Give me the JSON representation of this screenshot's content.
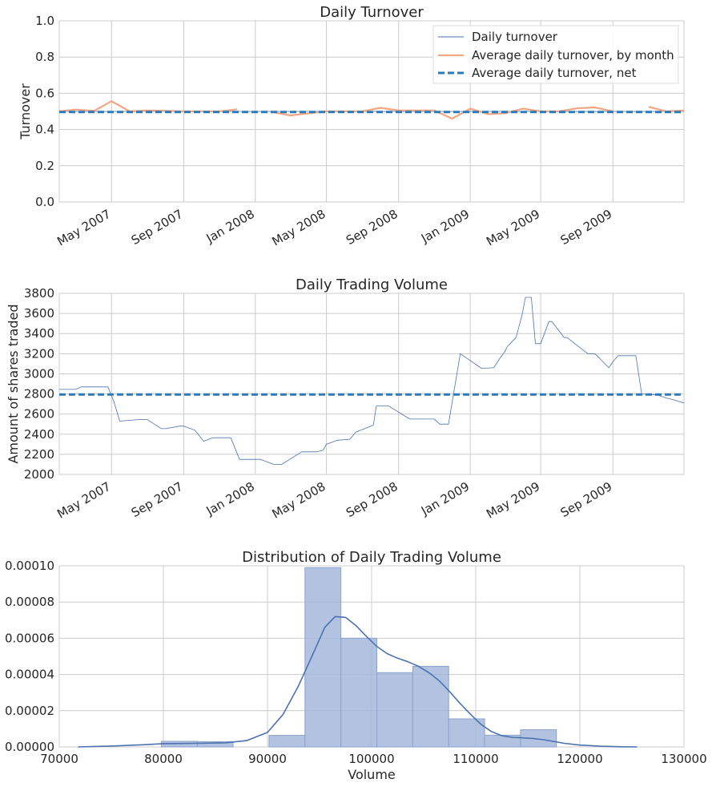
{
  "palette": {
    "daily_line": "#4c72b0",
    "monthly_line": "#f4a582",
    "net_line": "#2b7bba",
    "kde_line": "#4c72b0",
    "hist_fill": "#9fb3d9",
    "hist_edge": "#8ea3cc"
  },
  "chart_data": [
    {
      "type": "line",
      "title": "Daily Turnover",
      "xlabel": "",
      "ylabel": "Turnover",
      "ylim": [
        0,
        1.0
      ],
      "yticks": [
        0.0,
        0.2,
        0.4,
        0.6,
        0.8,
        1.0
      ],
      "ytick_labels": [
        "0.0",
        "0.2",
        "0.4",
        "0.6",
        "0.8",
        "1.0"
      ],
      "xlim": [
        "2007-02-01",
        "2009-12-31"
      ],
      "xticks": [
        "2007-05-01",
        "2007-09-01",
        "2008-01-01",
        "2008-05-01",
        "2008-09-01",
        "2009-01-01",
        "2009-05-01",
        "2009-09-01"
      ],
      "xtick_labels": [
        "May 2007",
        "Sep 2007",
        "Jan 2008",
        "May 2008",
        "Sep 2008",
        "Jan 2009",
        "May 2009",
        "Sep 2009"
      ],
      "grid": true,
      "legend": "upper-right",
      "series": [
        {
          "name": "Daily turnover",
          "style": "thin",
          "x": [
            "2007-02-01",
            "2009-12-31"
          ],
          "y": [
            0.5,
            0.5
          ]
        },
        {
          "name": "Average daily turnover, by month",
          "style": "solid",
          "segments": [
            {
              "x": [
                "2007-02-01",
                "2007-03-01",
                "2007-04-01",
                "2007-05-01",
                "2007-06-01",
                "2007-07-01",
                "2007-08-01",
                "2007-09-01",
                "2007-10-01",
                "2007-11-01",
                "2007-12-01"
              ],
              "y": [
                0.5,
                0.51,
                0.502,
                0.556,
                0.5,
                0.505,
                0.503,
                0.5,
                0.5,
                0.5,
                0.512
              ]
            },
            {
              "x": [
                "2008-02-01",
                "2008-03-01",
                "2008-04-01",
                "2008-05-01",
                "2008-06-01",
                "2008-07-01",
                "2008-08-01",
                "2008-09-01",
                "2008-10-01",
                "2008-11-01",
                "2008-12-01",
                "2009-01-01",
                "2009-02-01",
                "2009-03-01",
                "2009-04-01",
                "2009-05-01",
                "2009-06-01",
                "2009-07-01",
                "2009-08-01",
                "2009-09-01"
              ],
              "y": [
                0.495,
                0.478,
                0.49,
                0.5,
                0.5,
                0.5,
                0.52,
                0.505,
                0.505,
                0.505,
                0.46,
                0.515,
                0.485,
                0.49,
                0.515,
                0.5,
                0.5,
                0.517,
                0.522,
                0.5
              ]
            },
            {
              "x": [
                "2009-11-01",
                "2009-12-01",
                "2009-12-31"
              ],
              "y": [
                0.525,
                0.5,
                0.505
              ]
            }
          ]
        },
        {
          "name": "Average daily turnover, net",
          "style": "dashed",
          "x": [
            "2007-02-01",
            "2009-12-31"
          ],
          "y": [
            0.497,
            0.497
          ]
        }
      ]
    },
    {
      "type": "line",
      "title": "Daily Trading Volume",
      "xlabel": "",
      "ylabel": "Amount of shares traded",
      "ylim": [
        2000,
        3800
      ],
      "yticks": [
        2000,
        2200,
        2400,
        2600,
        2800,
        3000,
        3200,
        3400,
        3600,
        3800
      ],
      "ytick_labels": [
        "2000",
        "2200",
        "2400",
        "2600",
        "2800",
        "3000",
        "3200",
        "3400",
        "3600",
        "3800"
      ],
      "xlim": [
        "2007-02-01",
        "2009-12-31"
      ],
      "xticks": [
        "2007-05-01",
        "2007-09-01",
        "2008-01-01",
        "2008-05-01",
        "2008-09-01",
        "2009-01-01",
        "2009-05-01",
        "2009-09-01"
      ],
      "xtick_labels": [
        "May 2007",
        "Sep 2007",
        "Jan 2008",
        "May 2008",
        "Sep 2008",
        "Jan 2009",
        "May 2009",
        "Sep 2009"
      ],
      "grid": true,
      "series": [
        {
          "name": "",
          "style": "thin",
          "x": [
            "2007-02-01",
            "2007-03-01",
            "2007-03-10",
            "2007-04-25",
            "2007-05-05",
            "2007-05-15",
            "2007-06-15",
            "2007-07-01",
            "2007-07-25",
            "2007-08-01",
            "2007-08-25",
            "2007-09-01",
            "2007-09-20",
            "2007-10-05",
            "2007-10-20",
            "2007-11-01",
            "2007-11-20",
            "2007-12-05",
            "2007-12-25",
            "2008-01-10",
            "2008-02-01",
            "2008-02-15",
            "2008-03-20",
            "2008-04-15",
            "2008-04-25",
            "2008-05-01",
            "2008-05-20",
            "2008-06-10",
            "2008-06-20",
            "2008-07-20",
            "2008-07-25",
            "2008-08-15",
            "2008-09-20",
            "2008-10-05",
            "2008-11-01",
            "2008-11-10",
            "2008-11-25",
            "2008-12-15",
            "2009-01-20",
            "2009-02-10",
            "2009-02-20",
            "2009-03-01",
            "2009-03-05",
            "2009-03-20",
            "2009-03-30",
            "2009-04-05",
            "2009-04-15",
            "2009-04-22",
            "2009-05-01",
            "2009-05-15",
            "2009-05-20",
            "2009-06-10",
            "2009-06-15",
            "2009-07-20",
            "2009-08-01",
            "2009-08-10",
            "2009-08-25",
            "2009-09-01",
            "2009-09-10",
            "2009-10-10",
            "2009-10-20",
            "2009-11-15",
            "2009-12-01",
            "2009-12-15",
            "2009-12-31"
          ],
          "y": [
            2845,
            2845,
            2870,
            2870,
            2725,
            2530,
            2545,
            2545,
            2455,
            2455,
            2480,
            2480,
            2440,
            2330,
            2365,
            2365,
            2365,
            2150,
            2150,
            2150,
            2100,
            2100,
            2225,
            2225,
            2240,
            2300,
            2340,
            2350,
            2420,
            2490,
            2680,
            2680,
            2550,
            2550,
            2550,
            2500,
            2500,
            3200,
            3055,
            3060,
            3150,
            3220,
            3270,
            3360,
            3580,
            3760,
            3760,
            3300,
            3300,
            3520,
            3520,
            3360,
            3360,
            3200,
            3200,
            3150,
            3060,
            3120,
            3180,
            3180,
            2800,
            2790,
            2760,
            2740,
            2710
          ]
        },
        {
          "name": "",
          "style": "dashed",
          "x": [
            "2007-02-01",
            "2009-12-31"
          ],
          "y": [
            2795,
            2795
          ]
        }
      ]
    },
    {
      "type": "histogram",
      "title": "Distribution of Daily Trading Volume",
      "xlabel": "Volume",
      "ylabel": "",
      "xlim": [
        70000,
        130000
      ],
      "ylim": [
        0,
        0.0001
      ],
      "xticks": [
        70000,
        80000,
        90000,
        100000,
        110000,
        120000,
        130000
      ],
      "xtick_labels": [
        "70000",
        "80000",
        "90000",
        "100000",
        "110000",
        "120000",
        "130000"
      ],
      "yticks": [
        0,
        2e-05,
        4e-05,
        6e-05,
        8e-05,
        0.0001
      ],
      "ytick_labels": [
        "0.00000",
        "0.00002",
        "0.00004",
        "0.00006",
        "0.00008",
        "0.00010"
      ],
      "grid": true,
      "bins": [
        {
          "x0": 79800,
          "x1": 83250,
          "density": 3.1e-06
        },
        {
          "x0": 83250,
          "x1": 86700,
          "density": 2.9e-06
        },
        {
          "x0": 86700,
          "x1": 90150,
          "density": 0.0
        },
        {
          "x0": 90150,
          "x1": 93600,
          "density": 6.4e-06
        },
        {
          "x0": 93600,
          "x1": 97050,
          "density": 9.9e-05
        },
        {
          "x0": 97050,
          "x1": 100500,
          "density": 6e-05
        },
        {
          "x0": 100500,
          "x1": 103950,
          "density": 4.1e-05
        },
        {
          "x0": 103950,
          "x1": 107400,
          "density": 4.45e-05
        },
        {
          "x0": 107400,
          "x1": 110850,
          "density": 1.55e-05
        },
        {
          "x0": 110850,
          "x1": 114300,
          "density": 6.5e-06
        },
        {
          "x0": 114300,
          "x1": 117750,
          "density": 9.5e-06
        }
      ],
      "kde": {
        "x": [
          71800,
          75000,
          78000,
          80000,
          83000,
          86000,
          88000,
          90000,
          91500,
          93000,
          94500,
          95500,
          96500,
          97500,
          98500,
          99500,
          100500,
          101500,
          102500,
          103500,
          104500,
          105500,
          106500,
          107500,
          108500,
          109500,
          110500,
          111500,
          112500,
          113500,
          114500,
          115500,
          116500,
          117500,
          118500,
          120000,
          122000,
          124000,
          125500
        ],
        "y": [
          0.0,
          5e-07,
          1.2e-06,
          1.8e-06,
          2e-06,
          2.3e-06,
          3.5e-06,
          8e-06,
          1.8e-05,
          3.4e-05,
          5.3e-05,
          6.6e-05,
          7.2e-05,
          7.15e-05,
          6.7e-05,
          6.1e-05,
          5.55e-05,
          5.15e-05,
          4.9e-05,
          4.7e-05,
          4.45e-05,
          4.1e-05,
          3.65e-05,
          3.05e-05,
          2.4e-05,
          1.8e-05,
          1.25e-05,
          8.5e-06,
          6.2e-06,
          5.3e-06,
          5e-06,
          4.7e-06,
          4e-06,
          3e-06,
          2e-06,
          1e-06,
          4e-07,
          1e-07,
          0.0
        ]
      }
    }
  ]
}
